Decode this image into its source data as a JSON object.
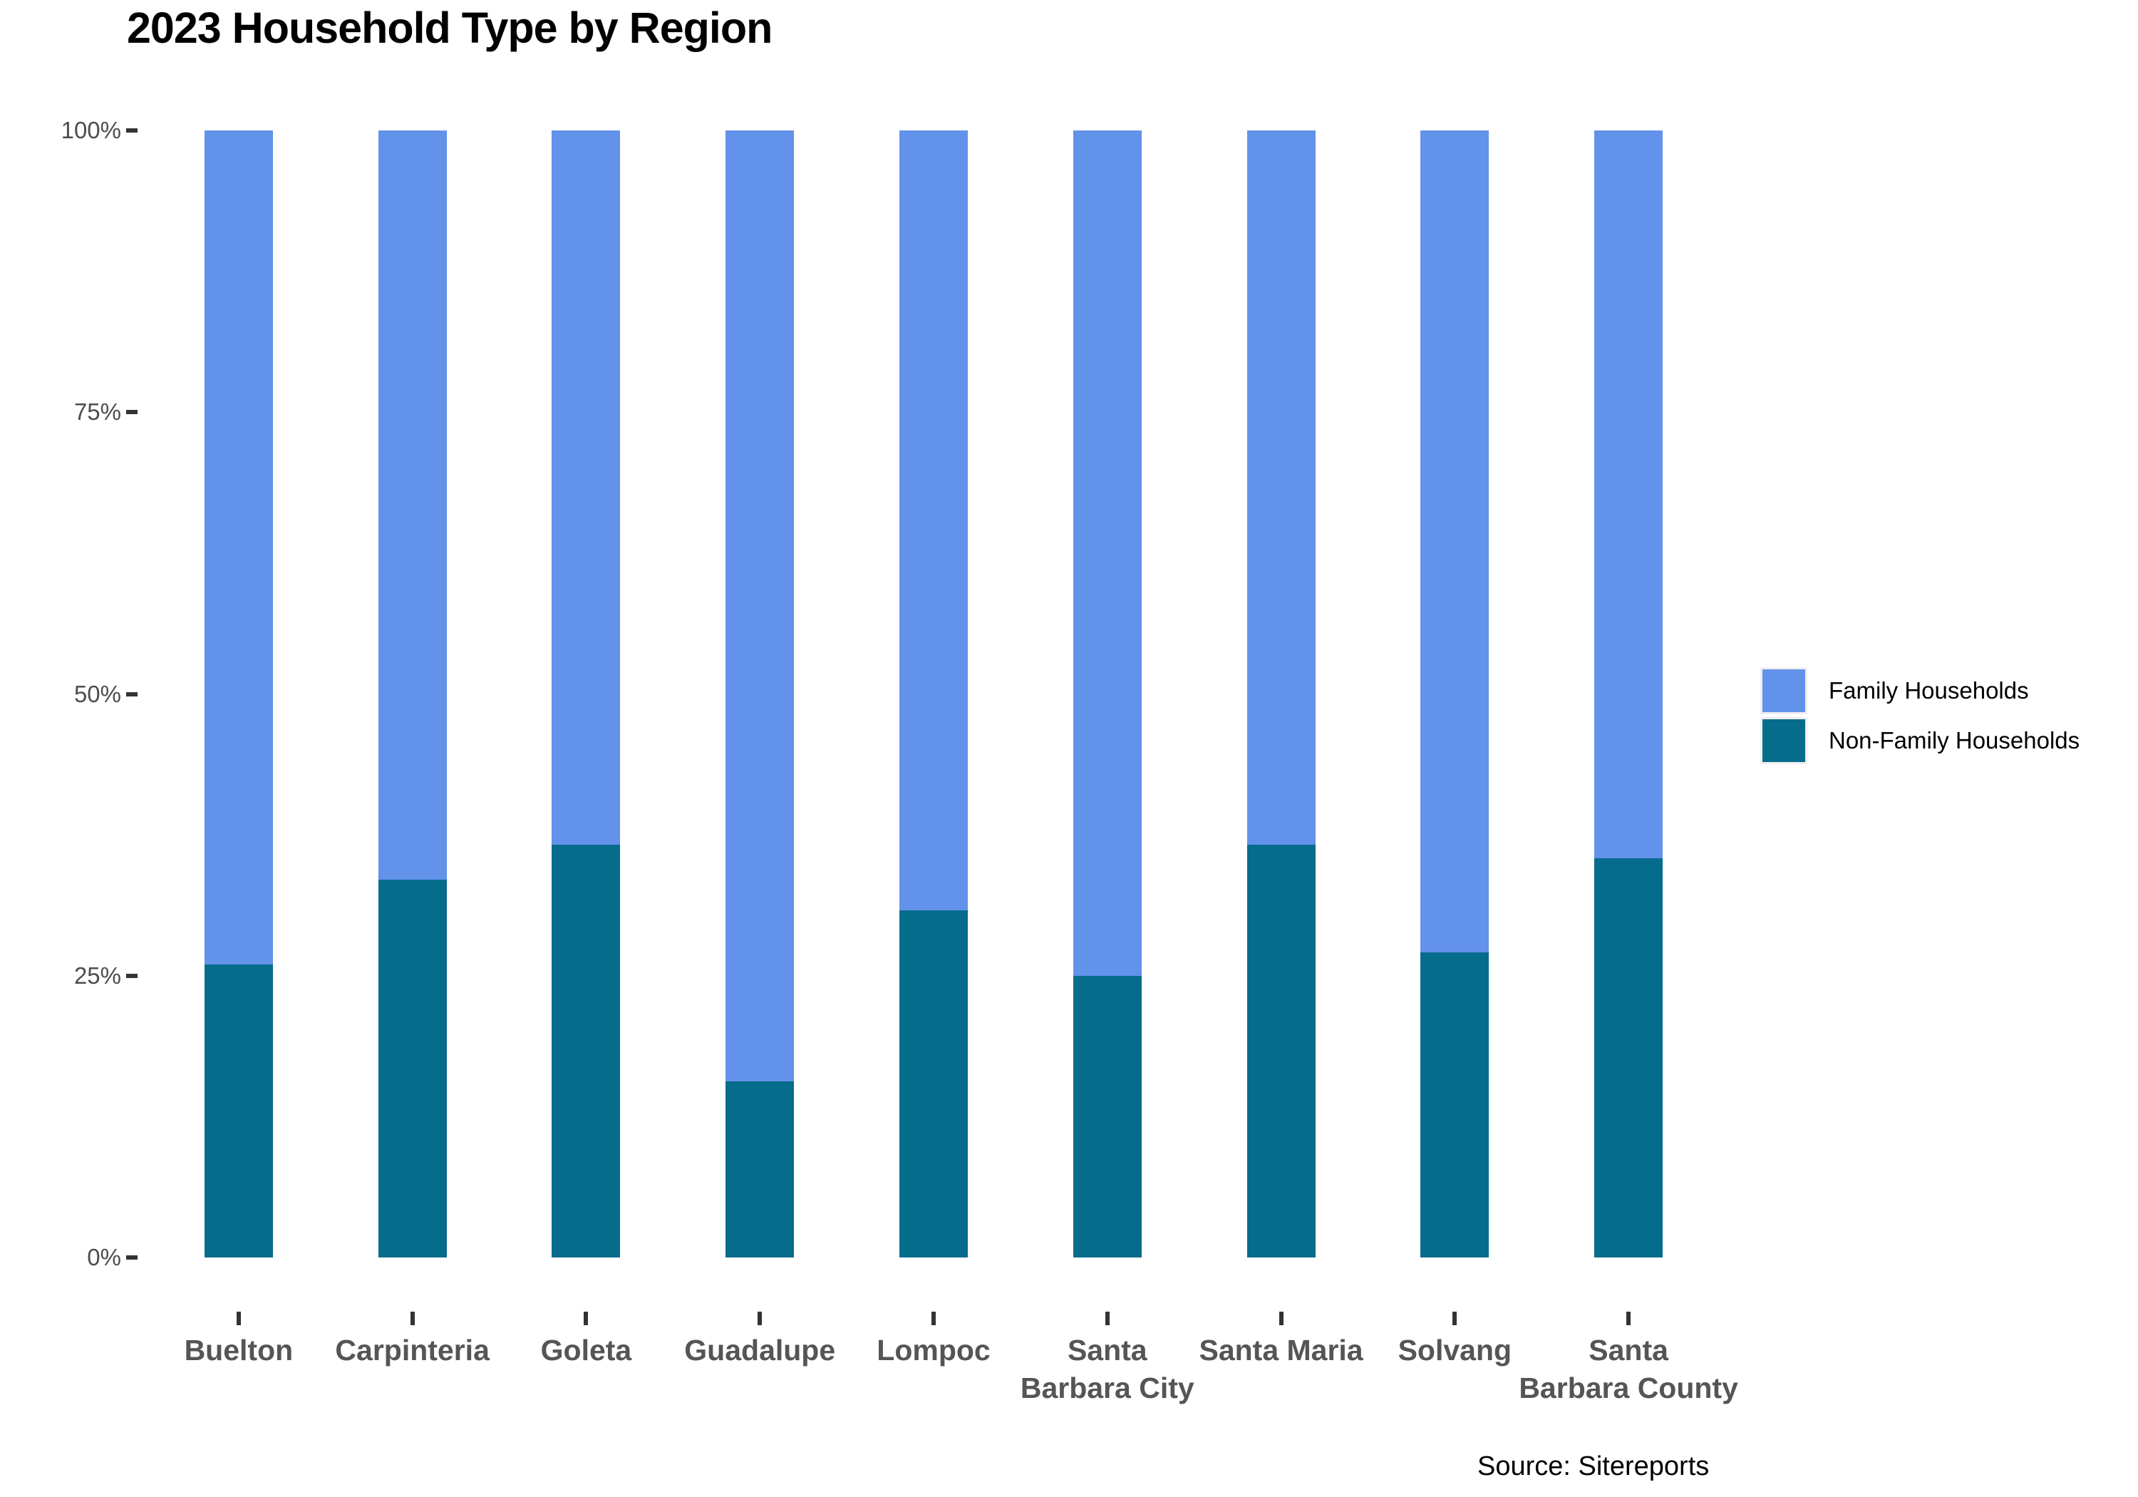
{
  "title": "2023 Household Type by Region",
  "source": "Source: Sitereports",
  "colors": {
    "family": "#6292EA",
    "non_family": "#066C8C"
  },
  "legend": {
    "position": "right",
    "items": [
      {
        "label": "Family Households",
        "color_key": "family"
      },
      {
        "label": "Non-Family Households",
        "color_key": "non_family"
      }
    ]
  },
  "y_axis": {
    "tick_labels": [
      "0%",
      "25%",
      "50%",
      "75%",
      "100%"
    ],
    "tick_values": [
      0,
      25,
      50,
      75,
      100
    ]
  },
  "chart_data": {
    "type": "bar",
    "stacked": true,
    "units": "percent",
    "title": "2023 Household Type by Region",
    "xlabel": "",
    "ylabel": "",
    "ylim": [
      0,
      100
    ],
    "grid": false,
    "legend_position": "right",
    "categories": [
      "Buelton",
      "Carpinteria",
      "Goleta",
      "Guadalupe",
      "Lompoc",
      "Santa\nBarbara City",
      "Santa Maria",
      "Solvang",
      "Santa\nBarbara County"
    ],
    "series": [
      {
        "name": "Family Households",
        "color_key": "family",
        "values": [
          74.0,
          66.5,
          63.4,
          84.4,
          69.2,
          75.0,
          63.4,
          72.9,
          64.6
        ]
      },
      {
        "name": "Non-Family Households",
        "color_key": "non_family",
        "values": [
          26.0,
          33.5,
          36.6,
          15.6,
          30.8,
          25.0,
          36.6,
          27.1,
          35.4
        ]
      }
    ]
  }
}
